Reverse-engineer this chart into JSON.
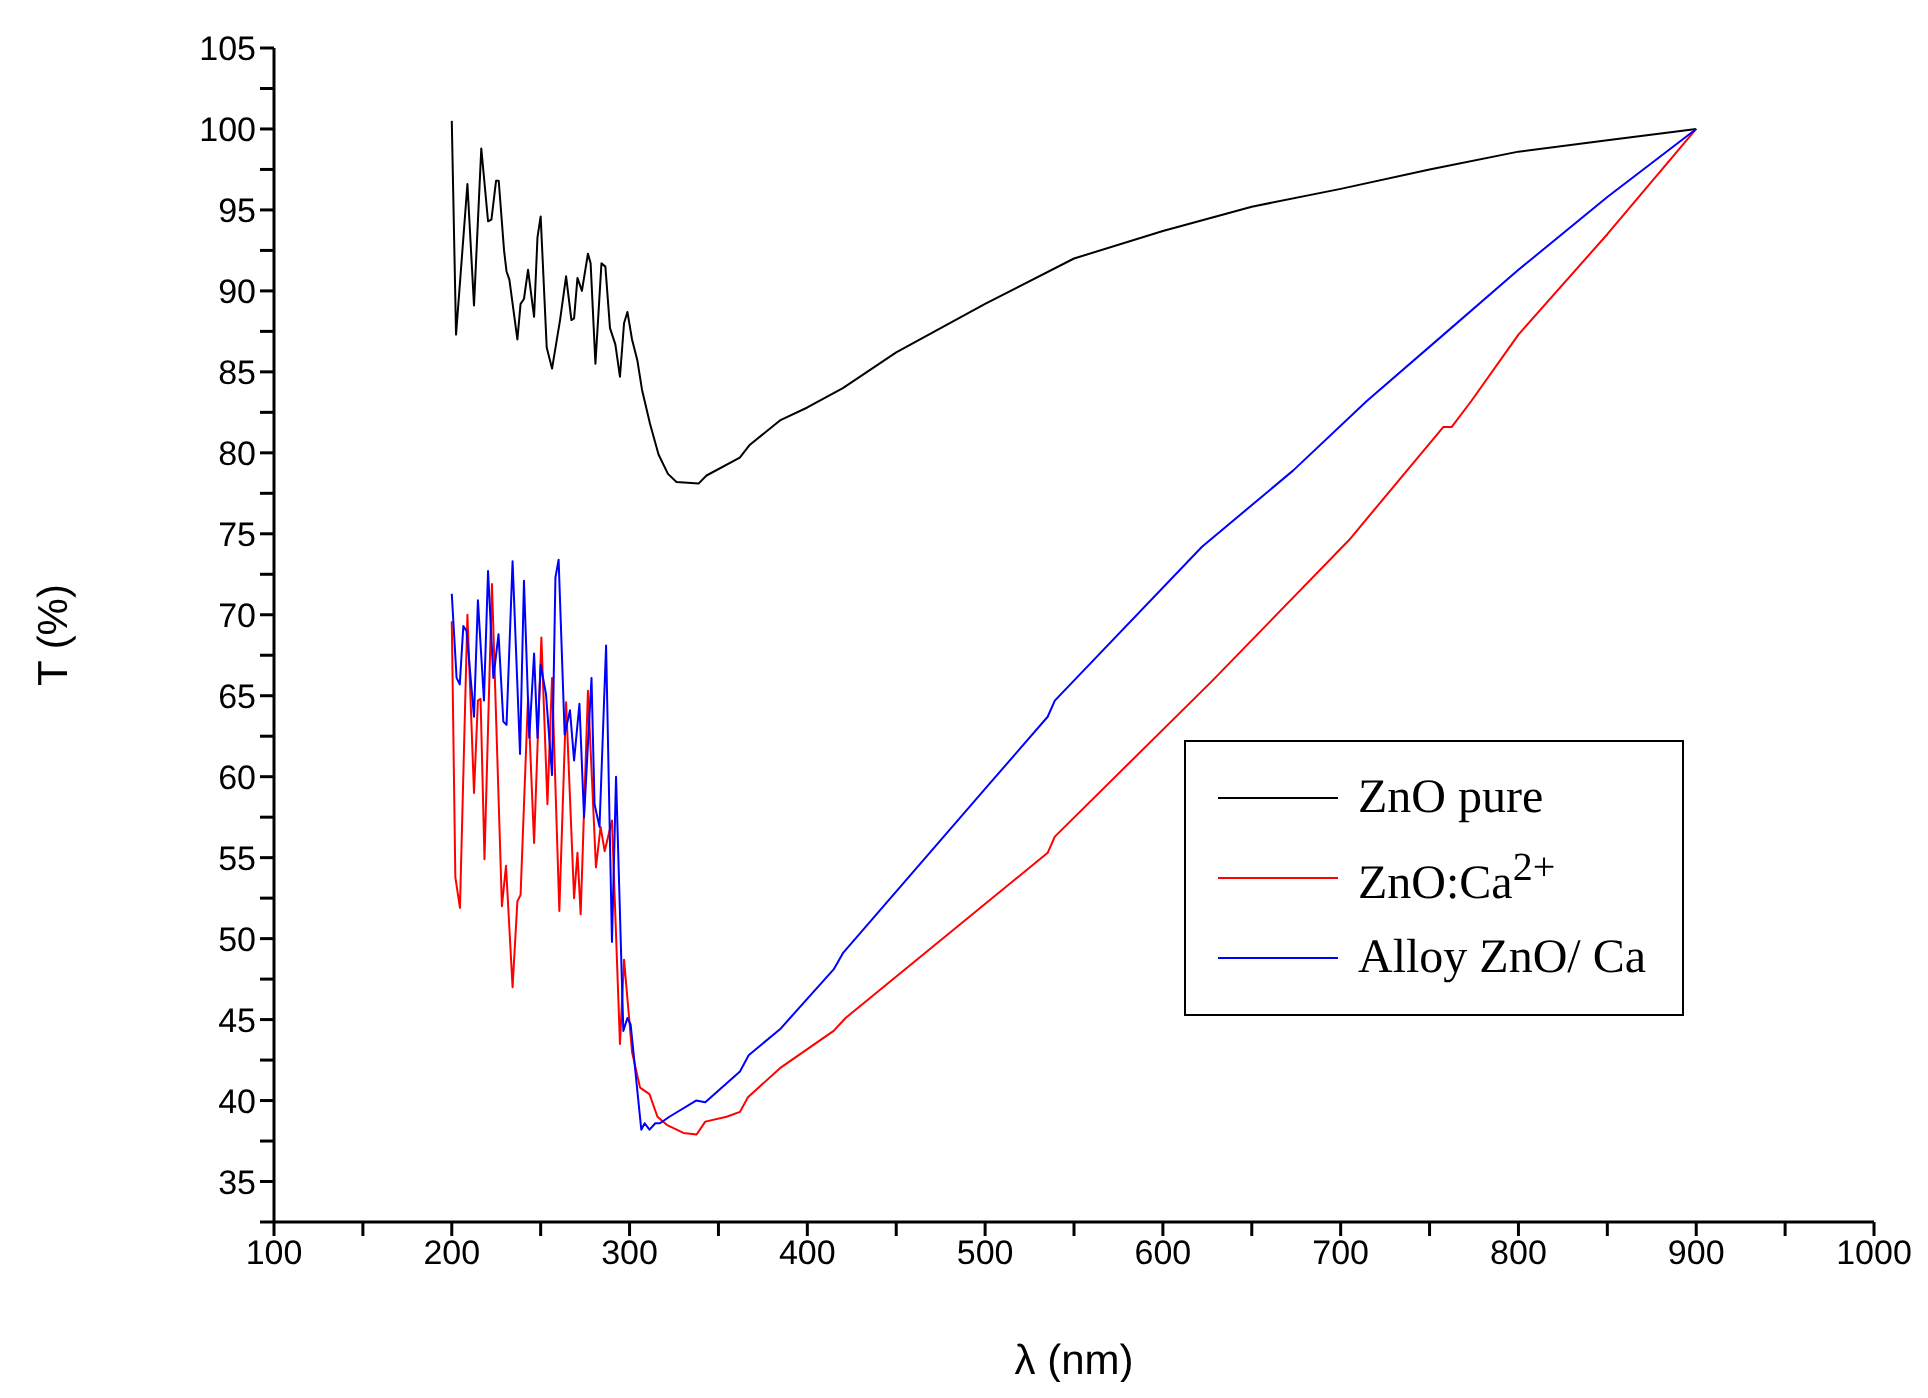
{
  "chart_data": {
    "type": "line",
    "xlabel": "λ (nm)",
    "ylabel": "T (%)",
    "xlim": [
      100,
      1000
    ],
    "ylim": [
      32.5,
      105
    ],
    "xticks": [
      100,
      {
        "value": 150,
        "label": null
      },
      200,
      {
        "value": 250,
        "label": null
      },
      300,
      {
        "value": 350,
        "label": null
      },
      400,
      {
        "value": 450,
        "label": null
      },
      500,
      {
        "value": 550,
        "label": null
      },
      600,
      {
        "value": 650,
        "label": null
      },
      700,
      {
        "value": 750,
        "label": null
      },
      800,
      {
        "value": 850,
        "label": null
      },
      900,
      {
        "value": 950,
        "label": null
      },
      1000
    ],
    "yticks": [
      {
        "value": 32.5,
        "label": null
      },
      35,
      {
        "value": 37.5,
        "label": null
      },
      40,
      {
        "value": 42.5,
        "label": null
      },
      45,
      {
        "value": 47.5,
        "label": null
      },
      50,
      {
        "value": 52.5,
        "label": null
      },
      55,
      {
        "value": 57.5,
        "label": null
      },
      60,
      {
        "value": 62.5,
        "label": null
      },
      65,
      {
        "value": 67.5,
        "label": null
      },
      70,
      {
        "value": 72.5,
        "label": null
      },
      75,
      {
        "value": 77.5,
        "label": null
      },
      80,
      {
        "value": 82.5,
        "label": null
      },
      85,
      {
        "value": 87.5,
        "label": null
      },
      90,
      {
        "value": 92.5,
        "label": null
      },
      95,
      {
        "value": 97.5,
        "label": null
      },
      100,
      {
        "value": 102.5,
        "label": null
      },
      105
    ],
    "grid": false,
    "legend": "right",
    "marker": "none",
    "line_style": "solid",
    "series": [
      {
        "name": "ZnO pure",
        "color": "#000000",
        "x": [
          200,
          202.4,
          208.8,
          212.5,
          216.6,
          220.4,
          222.3,
          224.9,
          226.4,
          229.4,
          230.8,
          232.4,
          236.9,
          238.7,
          240.6,
          242.9,
          246.3,
          248.2,
          250,
          253.4,
          256.4,
          260.9,
          264.3,
          267.3,
          268.8,
          270.7,
          273.2,
          276.6,
          278.1,
          280.8,
          284.2,
          286.4,
          289,
          292,
          294.6,
          296.9,
          298.8,
          301.4,
          304.4,
          307,
          311.5,
          316.3,
          321.6,
          326.4,
          338.8,
          343.3,
          362,
          367.7,
          384.6,
          400,
          420,
          450,
          500,
          550,
          600,
          650,
          700,
          750,
          800,
          850,
          900
        ],
        "values": [
          100.5,
          87.3,
          96.6,
          89.1,
          98.8,
          94.3,
          94.4,
          96.8,
          96.8,
          92.5,
          91.2,
          90.7,
          87,
          89.2,
          89.5,
          91.3,
          88.4,
          93.3,
          94.6,
          86.5,
          85.2,
          88.2,
          90.9,
          88.2,
          88.3,
          90.8,
          90,
          92.3,
          91.7,
          85.5,
          91.7,
          91.5,
          87.7,
          86.7,
          84.7,
          88,
          88.7,
          87,
          85.7,
          83.9,
          81.8,
          79.9,
          78.7,
          78.2,
          78.1,
          78.6,
          79.7,
          80.5,
          82,
          82.8,
          84,
          86.2,
          89.2,
          92,
          93.7,
          95.2,
          96.3,
          97.5,
          98.6,
          99.3,
          100
        ]
      },
      {
        "name": "ZnO:Ca$^{2+}$",
        "color": "#ff0000",
        "x": [
          200,
          202,
          204.6,
          208.8,
          212.5,
          214.7,
          216.2,
          218.4,
          222.6,
          228.2,
          230.5,
          234.2,
          236.9,
          238.7,
          242.9,
          246.3,
          250.4,
          253.8,
          256.4,
          260.5,
          264.3,
          268.8,
          270.7,
          272.5,
          276.6,
          281.1,
          283.7,
          286,
          290.1,
          294.6,
          296.9,
          301.4,
          305.9,
          308.5,
          311.2,
          315.7,
          320.9,
          330.3,
          337.7,
          342.6,
          354.6,
          362.1,
          366.6,
          384.6,
          414.8,
          421.5,
          535.2,
          539.2,
          627.6,
          704.6,
          757.8,
          762.5,
          773.5,
          800,
          850,
          900
        ],
        "values": [
          69.6,
          53.8,
          51.9,
          70,
          59,
          64.7,
          64.8,
          54.9,
          71.9,
          52,
          54.5,
          47,
          52.3,
          52.7,
          64.9,
          55.9,
          68.6,
          58.3,
          66.1,
          51.7,
          64.6,
          52.5,
          55.3,
          51.5,
          65.3,
          54.4,
          56.9,
          55.4,
          57.3,
          43.5,
          48.7,
          43,
          40.8,
          40.6,
          40.4,
          39,
          38.5,
          38,
          37.9,
          38.7,
          39,
          39.3,
          40.2,
          42,
          44.3,
          45.1,
          55.3,
          56.3,
          65.9,
          74.6,
          81.6,
          81.6,
          83.2,
          87.3,
          93.5,
          100
        ]
      },
      {
        "name": "Alloy ZnO/ Ca",
        "color": "#0000ff",
        "x": [
          200,
          202.7,
          204.5,
          206.5,
          208.3,
          212.5,
          214.7,
          218.1,
          220.4,
          223.4,
          226.3,
          229,
          230.8,
          234.2,
          238.4,
          240.6,
          243.6,
          246.3,
          248.2,
          250,
          253,
          256.4,
          258.3,
          260.1,
          263.5,
          266.5,
          268.8,
          271.8,
          274.4,
          278.6,
          280.3,
          283.1,
          286.8,
          290.1,
          292.4,
          296.5,
          298.8,
          300.6,
          306.6,
          308.5,
          311.2,
          314.5,
          317.1,
          322.4,
          337.4,
          342.6,
          362.1,
          367,
          384.6,
          414.8,
          420,
          499.6,
          535.2,
          539.2,
          622,
          673.2,
          714.7,
          760,
          800,
          850,
          900
        ],
        "values": [
          71.3,
          66.1,
          65.7,
          69.3,
          69,
          63.7,
          70.9,
          64.7,
          72.7,
          66.1,
          68.8,
          63.4,
          63.2,
          73.3,
          61.4,
          72.1,
          62.4,
          67.6,
          62.4,
          66.9,
          65.1,
          60.1,
          72.3,
          73.4,
          62.6,
          64.1,
          61,
          64.5,
          57.5,
          66.1,
          58.3,
          56.9,
          68.1,
          49.8,
          60,
          44.3,
          45.1,
          44.7,
          38.2,
          38.6,
          38.2,
          38.6,
          38.6,
          39,
          40,
          39.9,
          41.8,
          42.8,
          44.4,
          48.1,
          49.1,
          59.2,
          63.7,
          64.7,
          74.2,
          78.9,
          83.2,
          87.5,
          91.3,
          95.8,
          100
        ]
      }
    ]
  }
}
